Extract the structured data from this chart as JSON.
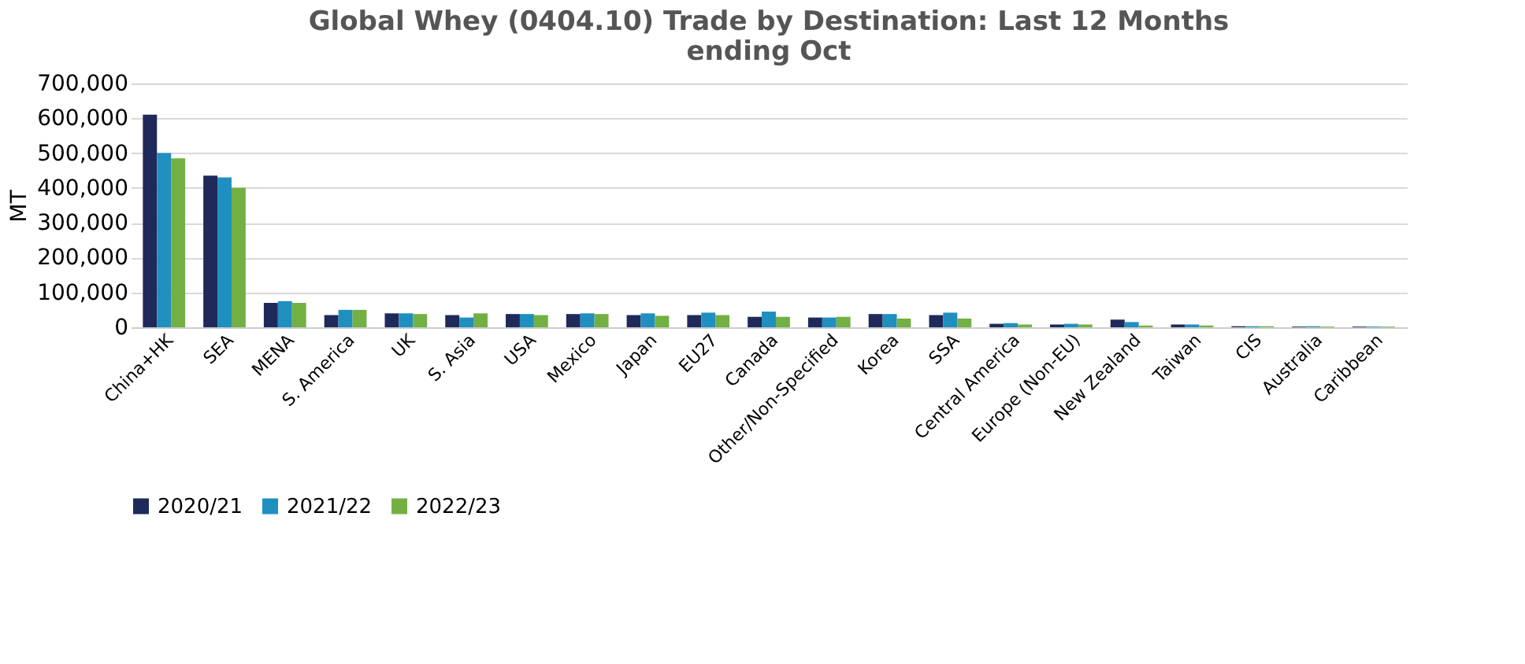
{
  "chart_data": {
    "type": "bar",
    "title": [
      "Global Whey (0404.10) Trade by Destination: Last 12 Months",
      "ending Oct"
    ],
    "ylabel": "MT",
    "categories": [
      "China+HK",
      "SEA",
      "MENA",
      "S. America",
      "UK",
      "S. Asia",
      "USA",
      "Mexico",
      "Japan",
      "EU27",
      "Canada",
      "Other/Non-Specified",
      "Korea",
      "SSA",
      "Central America",
      "Europe (Non-EU)",
      "New Zealand",
      "Taiwan",
      "CIS",
      "Australia",
      "Caribbean"
    ],
    "series": [
      {
        "name": "2020/21",
        "color": "#1f2a5a",
        "values": [
          610000,
          435000,
          70000,
          35000,
          40000,
          35000,
          38000,
          38000,
          35000,
          35000,
          30000,
          28000,
          38000,
          35000,
          10000,
          8000,
          22000,
          8000,
          3000,
          2000,
          2000
        ]
      },
      {
        "name": "2021/22",
        "color": "#1f8fc0",
        "values": [
          500000,
          430000,
          75000,
          50000,
          40000,
          28000,
          38000,
          40000,
          40000,
          42000,
          45000,
          28000,
          38000,
          42000,
          12000,
          10000,
          15000,
          8000,
          3000,
          3000,
          2000
        ]
      },
      {
        "name": "2022/23",
        "color": "#72b043",
        "values": [
          485000,
          400000,
          70000,
          50000,
          38000,
          40000,
          35000,
          38000,
          33000,
          35000,
          30000,
          30000,
          25000,
          25000,
          8000,
          8000,
          5000,
          5000,
          3000,
          2000,
          2000
        ]
      }
    ],
    "ylim": [
      0,
      700000
    ],
    "yticks": [
      0,
      {
        "value": 100000,
        "label": "100,000"
      },
      {
        "value": 200000,
        "label": "200,000"
      },
      {
        "value": 300000,
        "label": "300,000"
      },
      {
        "value": 400000,
        "label": "400,000"
      },
      {
        "value": 500000,
        "label": "500,000"
      },
      {
        "value": 600000,
        "label": "600,000"
      },
      {
        "value": 700000,
        "label": "700,000"
      }
    ],
    "grid": "y",
    "legend": "bottom"
  }
}
